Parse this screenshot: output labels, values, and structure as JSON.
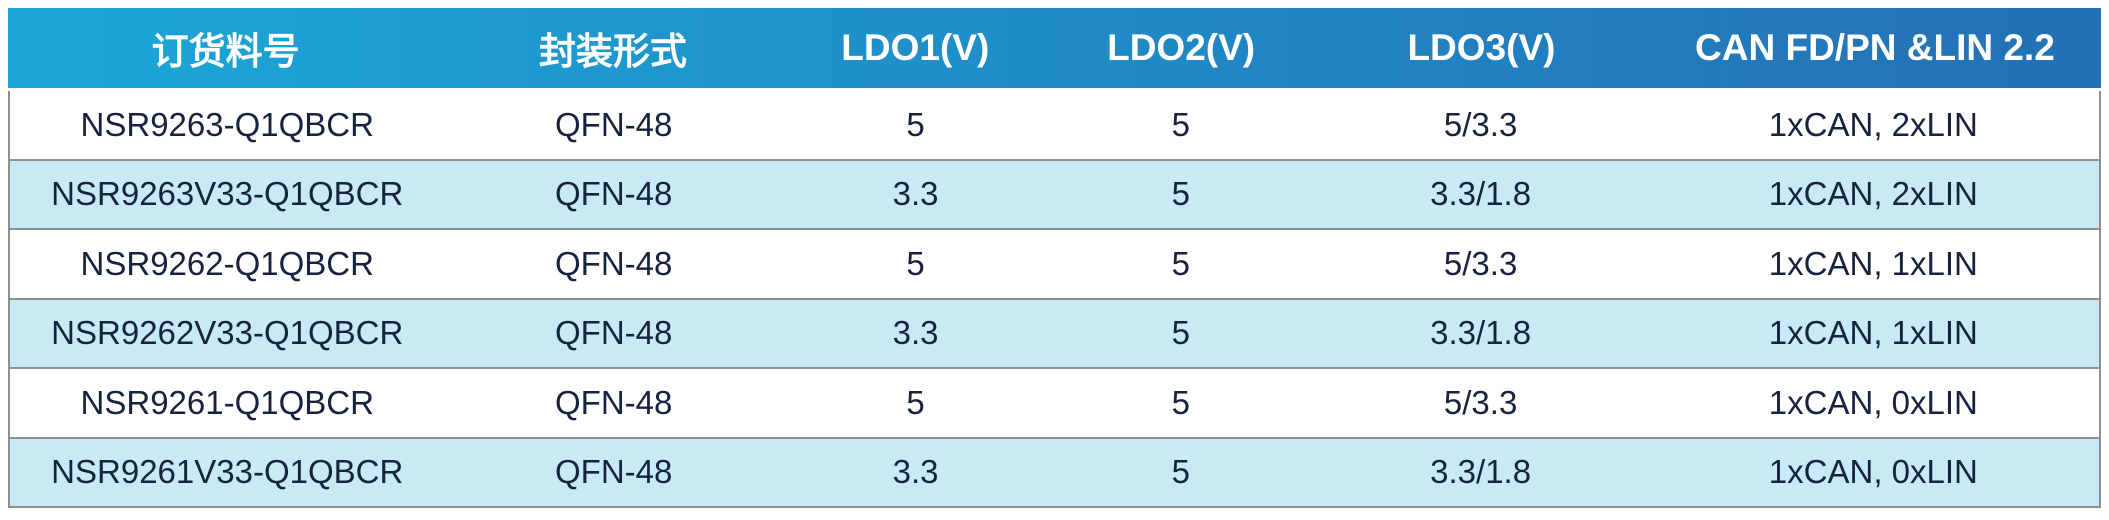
{
  "table": {
    "columns": [
      {
        "label": "订货料号"
      },
      {
        "label": "封装形式"
      },
      {
        "label": "LDO1(V)"
      },
      {
        "label": "LDO2(V)"
      },
      {
        "label": "LDO3(V)"
      },
      {
        "label": "CAN FD/PN &LIN 2.2"
      }
    ],
    "rows": [
      [
        "NSR9263-Q1QBCR",
        "QFN-48",
        "5",
        "5",
        "5/3.3",
        "1xCAN, 2xLIN"
      ],
      [
        "NSR9263V33-Q1QBCR",
        "QFN-48",
        "3.3",
        "5",
        "3.3/1.8",
        "1xCAN, 2xLIN"
      ],
      [
        "NSR9262-Q1QBCR",
        "QFN-48",
        "5",
        "5",
        "5/3.3",
        "1xCAN, 1xLIN"
      ],
      [
        "NSR9262V33-Q1QBCR",
        "QFN-48",
        "3.3",
        "5",
        "3.3/1.8",
        "1xCAN, 1xLIN"
      ],
      [
        "NSR9261-Q1QBCR",
        "QFN-48",
        "5",
        "5",
        "5/3.3",
        "1xCAN, 0xLIN"
      ],
      [
        "NSR9261V33-Q1QBCR",
        "QFN-48",
        "3.3",
        "5",
        "3.3/1.8",
        "1xCAN, 0xLIN"
      ]
    ]
  },
  "colors": {
    "header_gradient_left": "#1CA7D8",
    "header_gradient_right": "#2470B5",
    "header_text": "#FFFFFF",
    "row_bg": "#FFFFFF",
    "row_alt_bg": "#C8EAF5",
    "body_text": "#16233E",
    "grid_border": "#8F8F8F"
  }
}
